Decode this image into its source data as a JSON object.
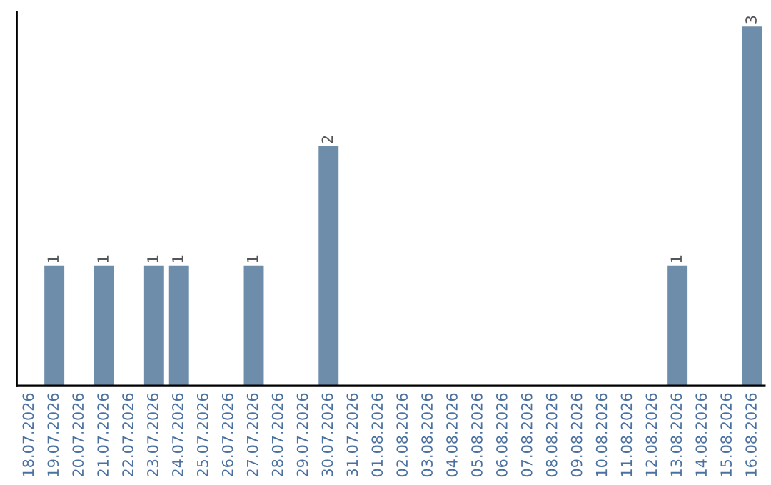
{
  "chart_data": {
    "type": "bar",
    "categories": [
      "18.07.2026",
      "19.07.2026",
      "20.07.2026",
      "21.07.2026",
      "22.07.2026",
      "23.07.2026",
      "24.07.2026",
      "25.07.2026",
      "26.07.2026",
      "27.07.2026",
      "28.07.2026",
      "29.07.2026",
      "30.07.2026",
      "31.07.2026",
      "01.08.2026",
      "02.08.2026",
      "03.08.2026",
      "04.08.2026",
      "05.08.2026",
      "06.08.2026",
      "07.08.2026",
      "08.08.2026",
      "09.08.2026",
      "10.08.2026",
      "11.08.2026",
      "12.08.2026",
      "13.08.2026",
      "14.08.2026",
      "15.08.2026",
      "16.08.2026"
    ],
    "values": [
      0,
      1,
      0,
      1,
      0,
      1,
      1,
      0,
      0,
      1,
      0,
      0,
      2,
      0,
      0,
      0,
      0,
      0,
      0,
      0,
      0,
      0,
      0,
      0,
      0,
      0,
      1,
      0,
      0,
      3
    ],
    "value_labels": [
      null,
      "1",
      null,
      "1",
      null,
      "1",
      "1",
      null,
      null,
      "1",
      null,
      null,
      "2",
      null,
      null,
      null,
      null,
      null,
      null,
      null,
      null,
      null,
      null,
      null,
      null,
      null,
      "1",
      null,
      null,
      "3"
    ],
    "color": "#6e8dab",
    "tick_labels": "x",
    "grid": false,
    "legend": false
  }
}
